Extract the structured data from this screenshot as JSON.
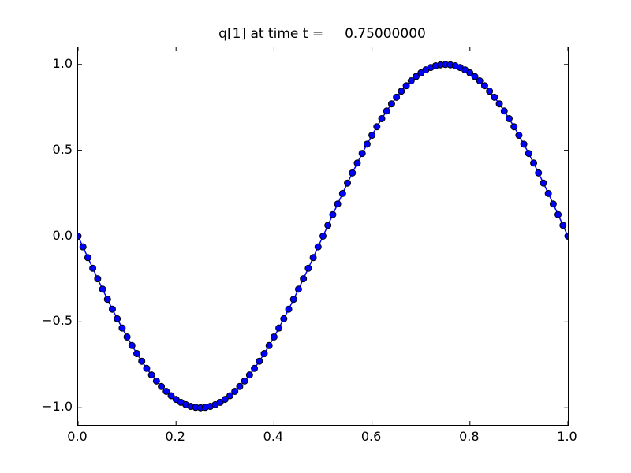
{
  "figure": {
    "background": "#ffffff",
    "spine_color": "#000000",
    "text_color": "#000000"
  },
  "chart_data": {
    "type": "line",
    "title": "q[1] at time t =     0.75000000",
    "xlabel": "",
    "ylabel": "",
    "xlim": [
      0.0,
      1.0
    ],
    "ylim": [
      -1.1,
      1.1
    ],
    "grid": false,
    "legend": null,
    "xticks": {
      "values": [
        0.0,
        0.2,
        0.4,
        0.6,
        0.8,
        1.0
      ],
      "labels": [
        "0.0",
        "0.2",
        "0.4",
        "0.6",
        "0.8",
        "1.0"
      ]
    },
    "yticks": {
      "values": [
        1.0,
        0.5,
        0.0,
        -0.5,
        -1.0
      ],
      "labels": [
        "1.0",
        "0.5",
        "0.0",
        "−0.5",
        "−1.0"
      ]
    },
    "series": [
      {
        "name": "q[1]",
        "marker": "circle",
        "marker_color": "#0000ff",
        "marker_edge_color": "#000000",
        "line_color": "#0000ff",
        "x": [
          0.0,
          0.01,
          0.02,
          0.03,
          0.04,
          0.05,
          0.06,
          0.07,
          0.08,
          0.09,
          0.1,
          0.11,
          0.12,
          0.13,
          0.14,
          0.15,
          0.16,
          0.17,
          0.18,
          0.19,
          0.2,
          0.21,
          0.22,
          0.23,
          0.24,
          0.25,
          0.26,
          0.27,
          0.28,
          0.29,
          0.3,
          0.31,
          0.32,
          0.33,
          0.34,
          0.35,
          0.36,
          0.37,
          0.38,
          0.39,
          0.4,
          0.41,
          0.42,
          0.43,
          0.44,
          0.45,
          0.46,
          0.47,
          0.48,
          0.49,
          0.5,
          0.51,
          0.52,
          0.53,
          0.54,
          0.55,
          0.56,
          0.57,
          0.58,
          0.59,
          0.6,
          0.61,
          0.62,
          0.63,
          0.64,
          0.65,
          0.66,
          0.67,
          0.68,
          0.69,
          0.7,
          0.71,
          0.72,
          0.73,
          0.74,
          0.75,
          0.76,
          0.77,
          0.78,
          0.79,
          0.8,
          0.81,
          0.82,
          0.83,
          0.84,
          0.85,
          0.86,
          0.87,
          0.88,
          0.89,
          0.9,
          0.91,
          0.92,
          0.93,
          0.94,
          0.95,
          0.96,
          0.97,
          0.98,
          0.99,
          1.0
        ],
        "y": [
          0.0,
          -0.0628,
          -0.1253,
          -0.1874,
          -0.2487,
          -0.309,
          -0.3681,
          -0.4258,
          -0.4818,
          -0.5358,
          -0.5878,
          -0.6374,
          -0.6845,
          -0.729,
          -0.7705,
          -0.809,
          -0.8443,
          -0.8763,
          -0.9048,
          -0.9298,
          -0.9511,
          -0.9686,
          -0.9823,
          -0.9921,
          -0.998,
          -1.0,
          -0.998,
          -0.9921,
          -0.9823,
          -0.9686,
          -0.9511,
          -0.9298,
          -0.9048,
          -0.8763,
          -0.8443,
          -0.809,
          -0.7705,
          -0.729,
          -0.6845,
          -0.6374,
          -0.5878,
          -0.5358,
          -0.4818,
          -0.4258,
          -0.3681,
          -0.309,
          -0.2487,
          -0.1874,
          -0.1253,
          -0.0628,
          0.0,
          0.0628,
          0.1253,
          0.1874,
          0.2487,
          0.309,
          0.3681,
          0.4258,
          0.4818,
          0.5358,
          0.5878,
          0.6374,
          0.6845,
          0.729,
          0.7705,
          0.809,
          0.8443,
          0.8763,
          0.9048,
          0.9298,
          0.9511,
          0.9686,
          0.9823,
          0.9921,
          0.998,
          1.0,
          0.998,
          0.9921,
          0.9823,
          0.9686,
          0.9511,
          0.9298,
          0.9048,
          0.8763,
          0.8443,
          0.809,
          0.7705,
          0.729,
          0.6845,
          0.6374,
          0.5878,
          0.5358,
          0.4818,
          0.4258,
          0.3681,
          0.309,
          0.2487,
          0.1874,
          0.1253,
          0.0628,
          0.0
        ]
      }
    ]
  }
}
